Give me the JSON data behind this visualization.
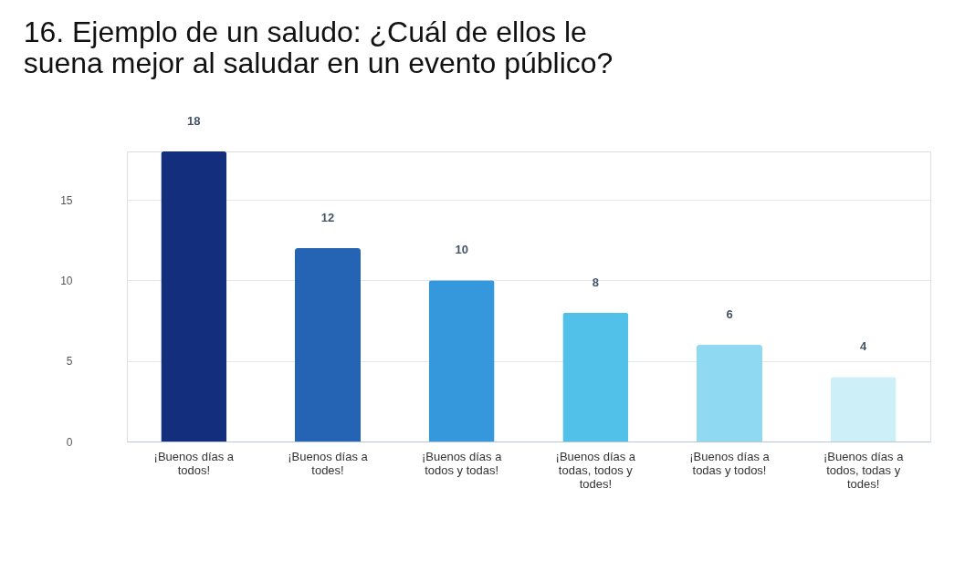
{
  "chart_data": {
    "type": "bar",
    "title": "16. Ejemplo de un saludo: ¿Cuál de ellos le suena mejor al saludar en un evento público?",
    "categories": [
      "¡Buenos días a todos!",
      "¡Buenos días a todes!",
      "¡Buenos días a todos y todas!",
      "¡Buenos días a todas, todos y todes!",
      "¡Buenos días a todas y todos!",
      "¡Buenos días a todos, todas y todes!"
    ],
    "values": [
      18,
      12,
      10,
      8,
      6,
      4
    ],
    "colors": [
      "#132e7c",
      "#2563b4",
      "#3597dc",
      "#52c1ea",
      "#8fdaf2",
      "#cdeff8"
    ],
    "ylim": [
      0,
      18
    ],
    "yticks": [
      0,
      5,
      10,
      15
    ],
    "grid": "y",
    "data_labels": true
  }
}
